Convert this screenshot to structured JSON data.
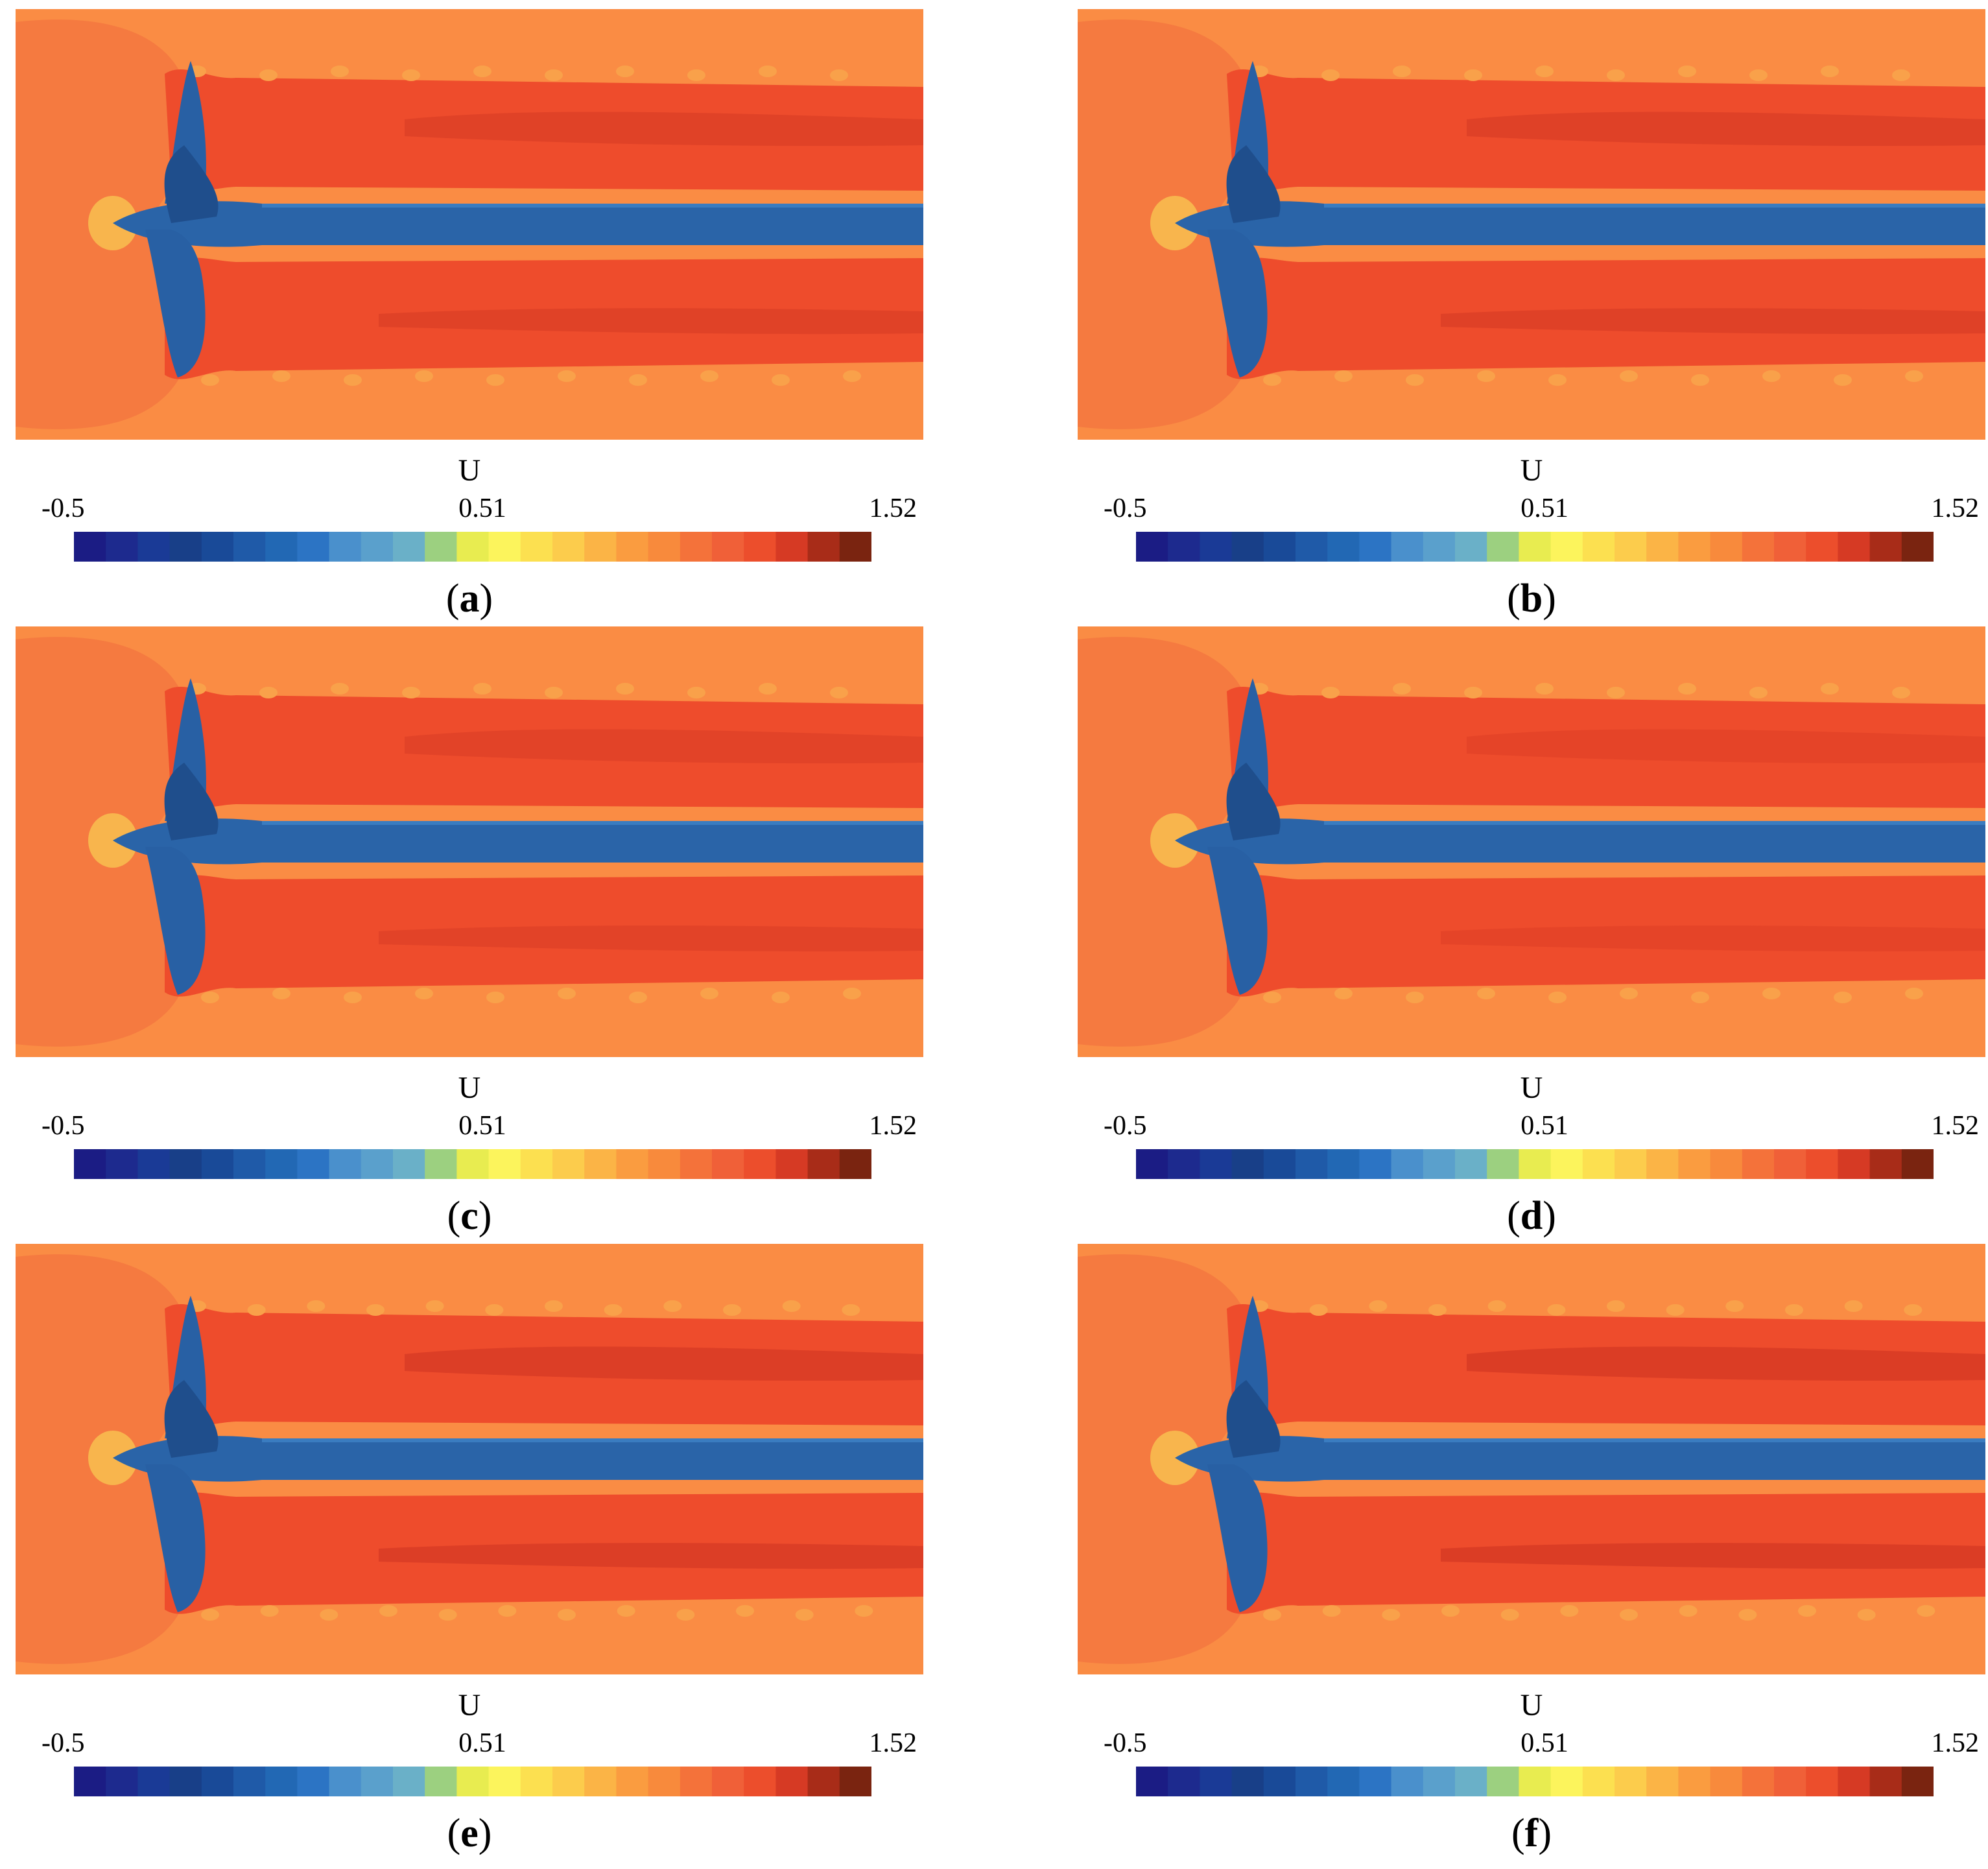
{
  "colorbar": {
    "variable": "U",
    "min_label": "-0.5",
    "mid_label": "0.51",
    "max_label": "1.52",
    "colors": [
      "#1b1c84",
      "#1d2a8e",
      "#1a3a96",
      "#183f88",
      "#194a98",
      "#1f5aa8",
      "#2268b4",
      "#2c74c4",
      "#4a90cc",
      "#5aa0cc",
      "#6ab0c8",
      "#9cd080",
      "#e8ec50",
      "#fcf45c",
      "#fce050",
      "#fccc4c",
      "#fbb446",
      "#fa9c40",
      "#f88a3c",
      "#f4723a",
      "#f06038",
      "#ec4e2c",
      "#d63a24",
      "#a82c18",
      "#7a2410"
    ]
  },
  "colors": {
    "background_flow": "#fa8c44",
    "upstream_bulge": "#f57a40",
    "wake": "#ee4c2c",
    "wake_core": "#d63a24",
    "shaft": "#2a64a8",
    "shaft_highlight": "#3a7cc0",
    "blade": "#2860a4",
    "blade_dark": "#1f4e8c",
    "tip_vortex": "#f9a14a",
    "stagnation_glow": "#f8c050"
  },
  "panels": [
    {
      "id": "a",
      "label_text": "a",
      "wake_strength": 0.55,
      "vortex_count": 10
    },
    {
      "id": "b",
      "label_text": "b",
      "wake_strength": 0.6,
      "vortex_count": 10
    },
    {
      "id": "c",
      "label_text": "c",
      "wake_strength": 0.5,
      "vortex_count": 10
    },
    {
      "id": "d",
      "label_text": "d",
      "wake_strength": 0.4,
      "vortex_count": 10
    },
    {
      "id": "e",
      "label_text": "e",
      "wake_strength": 0.75,
      "vortex_count": 12
    },
    {
      "id": "f",
      "label_text": "f",
      "wake_strength": 0.8,
      "vortex_count": 12
    }
  ]
}
